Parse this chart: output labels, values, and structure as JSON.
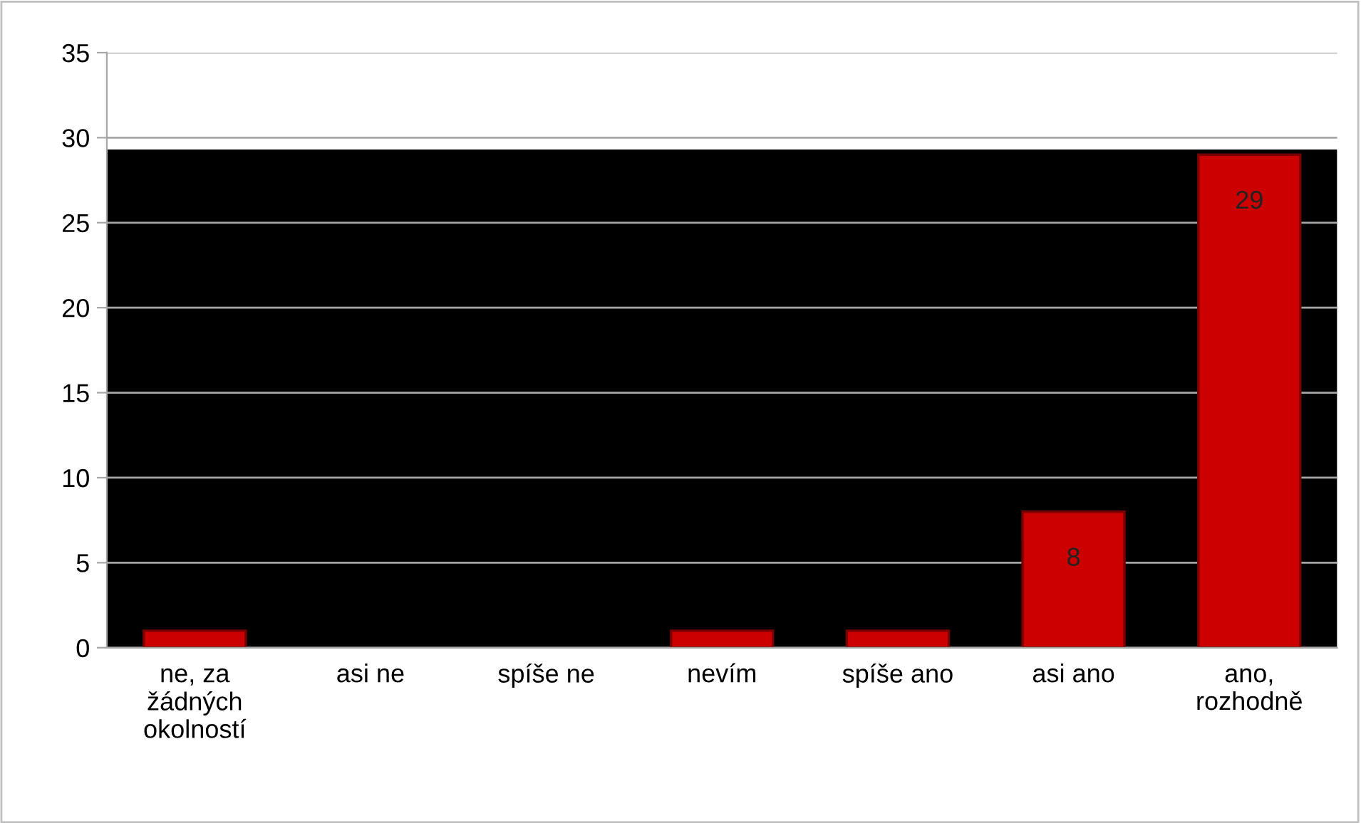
{
  "chart_data": {
    "type": "bar",
    "categories": [
      "ne, za žádných okolností",
      "asi ne",
      "spíše ne",
      "nevím",
      "spíše ano",
      "asi ano",
      "ano, rozhodně"
    ],
    "values": [
      1,
      0,
      0,
      1,
      1,
      8,
      29
    ],
    "value_labels": [
      null,
      null,
      null,
      null,
      null,
      "8",
      "29"
    ],
    "color": "#cc0000",
    "ylim": [
      0,
      35
    ],
    "yticks": [
      0,
      5,
      10,
      15,
      20,
      25,
      30,
      35
    ],
    "bands": [
      {
        "axis": "y",
        "from": 0,
        "to": 29.3,
        "color": "#000000"
      }
    ],
    "grid": "y",
    "legend": false
  }
}
